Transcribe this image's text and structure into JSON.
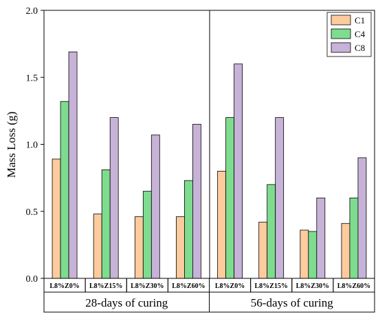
{
  "chart_data": {
    "type": "bar",
    "ylabel": "Mass Loss (g)",
    "ylim": [
      0.0,
      2.0
    ],
    "yticks": [
      "0.0",
      "0.5",
      "1.0",
      "1.5",
      "2.0"
    ],
    "grid": false,
    "legend_position": "top-right",
    "groups": [
      {
        "label": "28-days of curing",
        "categories": [
          "L8%Z0%",
          "L8%Z15%",
          "L8%Z30%",
          "L8%Z60%"
        ]
      },
      {
        "label": "56-days of curing",
        "categories": [
          "L8%Z0%",
          "L8%Z15%",
          "L8%Z30%",
          "L8%Z60%"
        ]
      }
    ],
    "series": [
      {
        "name": "C1",
        "color": "#FDCB9E",
        "values": [
          0.89,
          0.48,
          0.46,
          0.46,
          0.8,
          0.42,
          0.36,
          0.41
        ]
      },
      {
        "name": "C4",
        "color": "#7EDC8E",
        "values": [
          1.32,
          0.81,
          0.65,
          0.73,
          1.2,
          0.7,
          0.35,
          0.6
        ]
      },
      {
        "name": "C8",
        "color": "#C7B2D8",
        "values": [
          1.69,
          1.2,
          1.07,
          1.15,
          1.6,
          1.2,
          0.6,
          0.9
        ]
      }
    ]
  }
}
